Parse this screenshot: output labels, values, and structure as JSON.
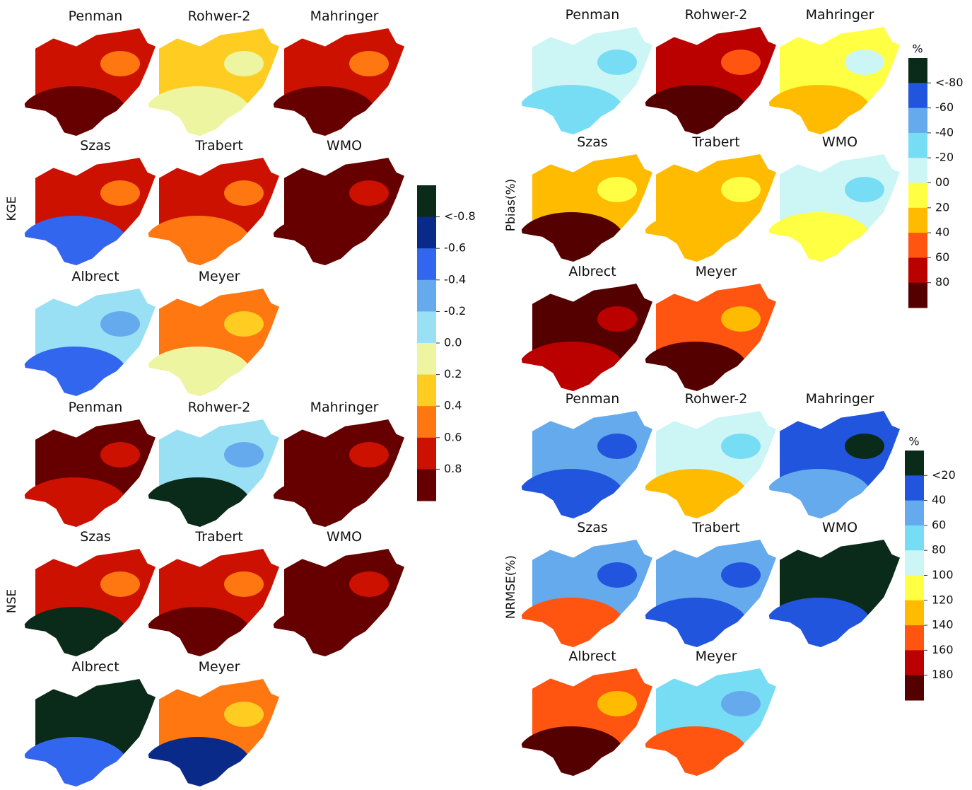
{
  "sections": [
    {
      "label": "KGE",
      "titles": [
        "Penman",
        "Rohwer-2",
        "Mahringer",
        "Szas",
        "Trabert",
        "WMO",
        "Albrect",
        "Meyer"
      ]
    },
    {
      "label": "NSE",
      "titles": [
        "Penman",
        "Rohwer-2",
        "Mahringer",
        "Szas",
        "Trabert",
        "WMO",
        "Albrect",
        "Meyer"
      ]
    },
    {
      "label": "Pbias(%)",
      "titles": [
        "Penman",
        "Rohwer-2",
        "Mahringer",
        "Szas",
        "Trabert",
        "WMO",
        "Albrect",
        "Meyer"
      ]
    },
    {
      "label": "NRMSE(%)",
      "titles": [
        "Penman",
        "Rohwer-2",
        "Mahringer",
        "Szas",
        "Trabert",
        "WMO",
        "Albrect",
        "Meyer"
      ]
    }
  ],
  "colorbars": [
    {
      "labels": [
        "<-0.8",
        "-0.6",
        "-0.4",
        "-0.2",
        "0.0",
        "0.2",
        "0.4",
        "0.6",
        "0.8"
      ],
      "colors": [
        "#0a2a1a",
        "#0a2a8a",
        "#3366ee",
        "#66aaee",
        "#99e0f5",
        "#eef5a0",
        "#ffcc22",
        "#ff7711",
        "#cc1100",
        "#660000"
      ]
    },
    {
      "unit": "%",
      "labels": [
        "<-80",
        "-60",
        "-40",
        "-20",
        "00",
        "20",
        "40",
        "60",
        "80"
      ],
      "colors": [
        "#0a2a1a",
        "#2255dd",
        "#66aaee",
        "#77ddf5",
        "#ccf5f5",
        "#ffff44",
        "#ffbb00",
        "#ff5511",
        "#bb0000",
        "#550000"
      ]
    },
    {
      "unit": "%",
      "labels": [
        "<20",
        "40",
        "60",
        "80",
        "100",
        "120",
        "140",
        "160",
        "180"
      ],
      "colors": [
        "#0a2a1a",
        "#2255dd",
        "#66aaee",
        "#77ddf5",
        "#ccf5f5",
        "#ffff44",
        "#ffbb00",
        "#ff5511",
        "#bb0000",
        "#550000"
      ]
    }
  ]
}
